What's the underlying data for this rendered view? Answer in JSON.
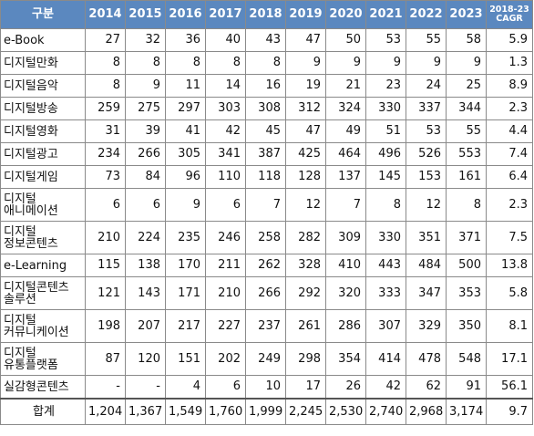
{
  "table": {
    "headers": [
      "구분",
      "2014",
      "2015",
      "2016",
      "2017",
      "2018",
      "2019",
      "2020",
      "2021",
      "2022",
      "2023"
    ],
    "cagr_header": [
      "2018-23",
      "CAGR"
    ],
    "rows": [
      {
        "label": [
          "e-Book"
        ],
        "values": [
          "27",
          "32",
          "36",
          "40",
          "43",
          "47",
          "50",
          "53",
          "55",
          "58",
          "5.9"
        ]
      },
      {
        "label": [
          "디지털만화"
        ],
        "values": [
          "8",
          "8",
          "8",
          "8",
          "8",
          "9",
          "9",
          "9",
          "9",
          "9",
          "1.3"
        ]
      },
      {
        "label": [
          "디지털음악"
        ],
        "values": [
          "8",
          "9",
          "11",
          "14",
          "16",
          "19",
          "21",
          "23",
          "24",
          "25",
          "8.9"
        ]
      },
      {
        "label": [
          "디지털방송"
        ],
        "values": [
          "259",
          "275",
          "297",
          "303",
          "308",
          "312",
          "324",
          "330",
          "337",
          "344",
          "2.3"
        ]
      },
      {
        "label": [
          "디지털영화"
        ],
        "values": [
          "31",
          "39",
          "41",
          "42",
          "45",
          "47",
          "49",
          "51",
          "53",
          "55",
          "4.4"
        ]
      },
      {
        "label": [
          "디지털광고"
        ],
        "values": [
          "234",
          "266",
          "305",
          "341",
          "387",
          "425",
          "464",
          "496",
          "526",
          "553",
          "7.4"
        ]
      },
      {
        "label": [
          "디지털게임"
        ],
        "values": [
          "73",
          "84",
          "96",
          "110",
          "118",
          "128",
          "137",
          "145",
          "153",
          "161",
          "6.4"
        ]
      },
      {
        "label": [
          "디지털",
          "애니메이션"
        ],
        "values": [
          "6",
          "6",
          "9",
          "6",
          "7",
          "12",
          "7",
          "8",
          "12",
          "8",
          "2.3"
        ]
      },
      {
        "label": [
          "디지털",
          "정보콘텐츠"
        ],
        "values": [
          "210",
          "224",
          "235",
          "246",
          "258",
          "282",
          "309",
          "330",
          "351",
          "371",
          "7.5"
        ]
      },
      {
        "label": [
          "e-Learning"
        ],
        "values": [
          "115",
          "138",
          "170",
          "211",
          "262",
          "328",
          "410",
          "443",
          "484",
          "500",
          "13.8"
        ]
      },
      {
        "label": [
          "디지털콘텐츠",
          "솔루션"
        ],
        "values": [
          "121",
          "143",
          "171",
          "210",
          "266",
          "292",
          "320",
          "333",
          "347",
          "353",
          "5.8"
        ]
      },
      {
        "label": [
          "디지털",
          "커뮤니케이션"
        ],
        "values": [
          "198",
          "207",
          "217",
          "227",
          "237",
          "261",
          "286",
          "307",
          "329",
          "350",
          "8.1"
        ]
      },
      {
        "label": [
          "디지털",
          "유통플랫폼"
        ],
        "values": [
          "87",
          "120",
          "151",
          "202",
          "249",
          "298",
          "354",
          "414",
          "478",
          "548",
          "17.1"
        ]
      },
      {
        "label": [
          "실감형콘텐츠"
        ],
        "values": [
          "-",
          "-",
          "4",
          "6",
          "10",
          "17",
          "26",
          "42",
          "62",
          "91",
          "56.1"
        ]
      }
    ],
    "total": {
      "label": "합계",
      "values": [
        "1,204",
        "1,367",
        "1,549",
        "1,760",
        "1,999",
        "2,245",
        "2,530",
        "2,740",
        "2,968",
        "3,174",
        "9.7"
      ]
    }
  }
}
